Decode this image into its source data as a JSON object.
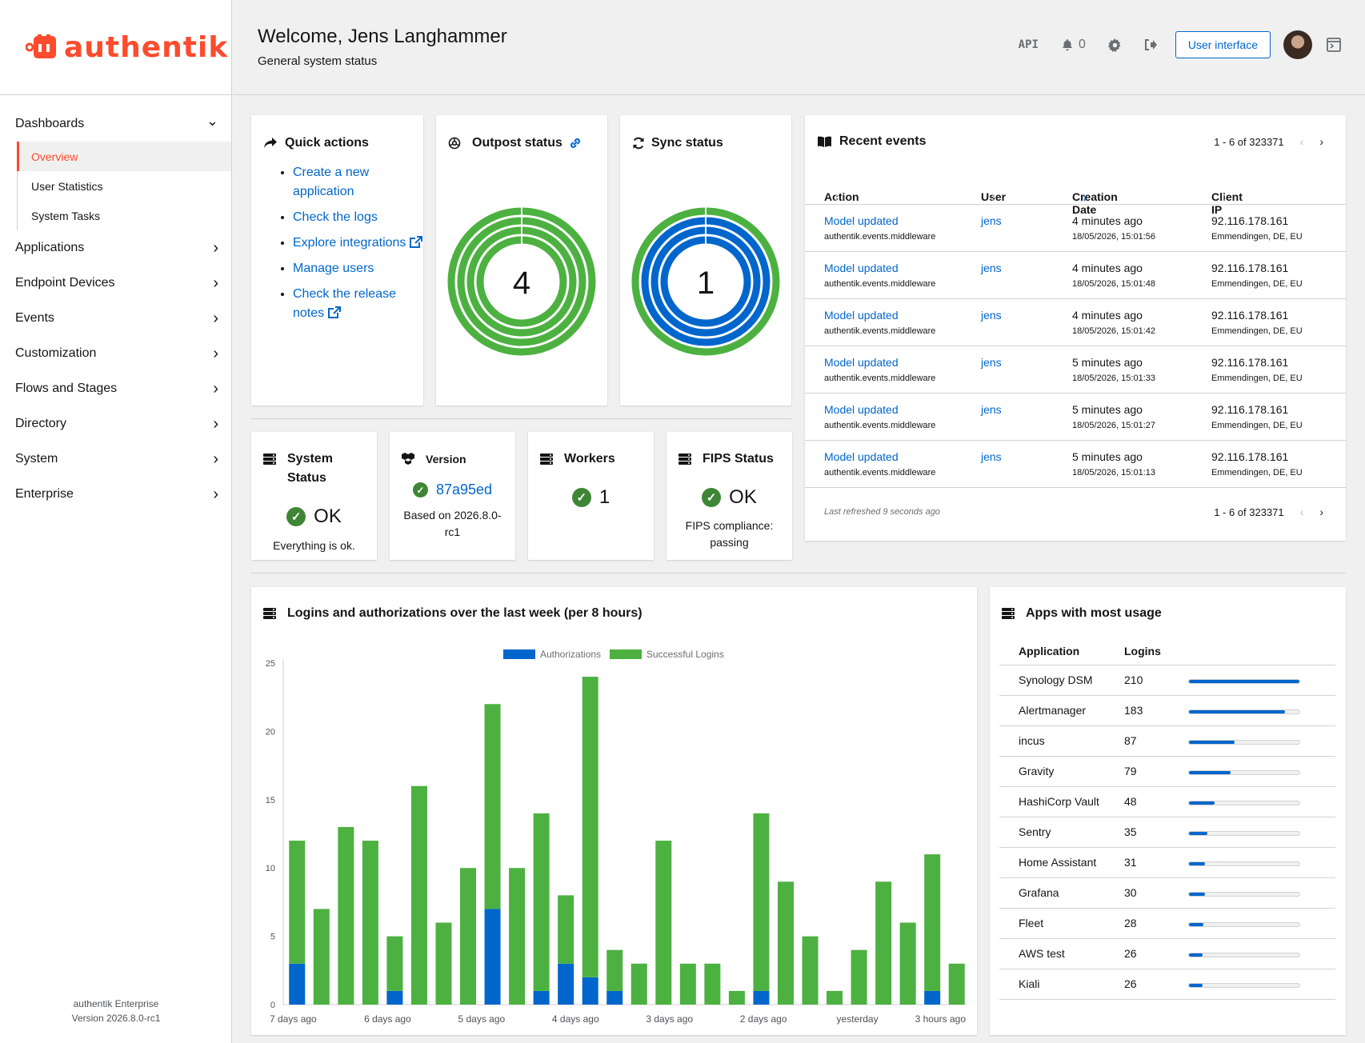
{
  "brand": {
    "name": "authentik",
    "color": "#fd4b2d"
  },
  "sidebar": {
    "items": [
      {
        "label": "Dashboards",
        "expanded": true,
        "children": [
          {
            "label": "Overview",
            "active": true
          },
          {
            "label": "User Statistics",
            "active": false
          },
          {
            "label": "System Tasks",
            "active": false
          }
        ]
      },
      {
        "label": "Applications"
      },
      {
        "label": "Endpoint Devices"
      },
      {
        "label": "Events"
      },
      {
        "label": "Customization"
      },
      {
        "label": "Flows and Stages"
      },
      {
        "label": "Directory"
      },
      {
        "label": "System"
      },
      {
        "label": "Enterprise"
      }
    ],
    "footer": {
      "edition": "authentik Enterprise",
      "version": "Version 2026.8.0-rc1"
    }
  },
  "header": {
    "title": "Welcome, Jens Langhammer",
    "subtitle": "General system status",
    "api_label": "API",
    "notifications_count": "0",
    "ui_button": "User interface"
  },
  "quick_actions": {
    "title": "Quick actions",
    "items": [
      {
        "label": "Create a new application",
        "external": false
      },
      {
        "label": "Check the logs",
        "external": false
      },
      {
        "label": "Explore integrations",
        "external": true
      },
      {
        "label": "Manage users",
        "external": false
      },
      {
        "label": "Check the release notes",
        "external": true
      }
    ]
  },
  "outpost_status": {
    "title": "Outpost status",
    "value": "4"
  },
  "sync_status": {
    "title": "Sync status",
    "value": "1"
  },
  "recent_events": {
    "title": "Recent events",
    "pagination": "1 - 6 of 323371",
    "columns": [
      "Action",
      "User",
      "Creation Date",
      "Client IP"
    ],
    "rows": [
      {
        "action": "Model updated",
        "app": "authentik.events.middleware",
        "user": "jens",
        "relative": "4 minutes ago",
        "date": "18/05/2026, 15:01:56",
        "ip": "92.116.178.161",
        "geo": "Emmendingen, DE, EU"
      },
      {
        "action": "Model updated",
        "app": "authentik.events.middleware",
        "user": "jens",
        "relative": "4 minutes ago",
        "date": "18/05/2026, 15:01:48",
        "ip": "92.116.178.161",
        "geo": "Emmendingen, DE, EU"
      },
      {
        "action": "Model updated",
        "app": "authentik.events.middleware",
        "user": "jens",
        "relative": "4 minutes ago",
        "date": "18/05/2026, 15:01:42",
        "ip": "92.116.178.161",
        "geo": "Emmendingen, DE, EU"
      },
      {
        "action": "Model updated",
        "app": "authentik.events.middleware",
        "user": "jens",
        "relative": "5 minutes ago",
        "date": "18/05/2026, 15:01:33",
        "ip": "92.116.178.161",
        "geo": "Emmendingen, DE, EU"
      },
      {
        "action": "Model updated",
        "app": "authentik.events.middleware",
        "user": "jens",
        "relative": "5 minutes ago",
        "date": "18/05/2026, 15:01:27",
        "ip": "92.116.178.161",
        "geo": "Emmendingen, DE, EU"
      },
      {
        "action": "Model updated",
        "app": "authentik.events.middleware",
        "user": "jens",
        "relative": "5 minutes ago",
        "date": "18/05/2026, 15:01:13",
        "ip": "92.116.178.161",
        "geo": "Emmendingen, DE, EU"
      }
    ],
    "last_refreshed": "Last refreshed 9 seconds ago"
  },
  "system_status": {
    "title": "System Status",
    "value": "OK",
    "desc": "Everything is ok."
  },
  "version": {
    "title": "Version",
    "value": "87a95ed",
    "desc": "Based on 2026.8.0-rc1"
  },
  "workers": {
    "title": "Workers",
    "value": "1"
  },
  "fips": {
    "title": "FIPS Status",
    "value": "OK",
    "desc": "FIPS compliance: passing"
  },
  "logins_chart": {
    "title": "Logins and authorizations over the last week (per 8 hours)"
  },
  "chart_data": {
    "type": "bar",
    "stacked": true,
    "title": "Logins and authorizations over the last week (per 8 hours)",
    "x_tick_labels": [
      "7 days ago",
      "6 days ago",
      "5 days ago",
      "4 days ago",
      "3 days ago",
      "2 days ago",
      "yesterday",
      "3 hours ago"
    ],
    "ylim": [
      0,
      25
    ],
    "y_ticks": [
      0,
      5,
      10,
      15,
      20,
      25
    ],
    "legend_position": "top",
    "series": [
      {
        "name": "Authorizations",
        "color": "#0066cc",
        "values": [
          3,
          0,
          0,
          0,
          1,
          0,
          0,
          0,
          7,
          0,
          1,
          3,
          2,
          1,
          0,
          0,
          0,
          0,
          0,
          1,
          0,
          0,
          0,
          0,
          0,
          0,
          1,
          0
        ]
      },
      {
        "name": "Successful Logins",
        "color": "#4cb140",
        "values": [
          9,
          7,
          13,
          12,
          4,
          16,
          6,
          10,
          15,
          10,
          13,
          5,
          22,
          3,
          3,
          12,
          3,
          3,
          1,
          13,
          9,
          5,
          1,
          4,
          9,
          6,
          10,
          3
        ]
      }
    ]
  },
  "apps_usage": {
    "title": "Apps with most usage",
    "columns": [
      "Application",
      "Logins"
    ],
    "rows": [
      {
        "name": "Synology DSM",
        "logins": "210",
        "fraction": 1.0
      },
      {
        "name": "Alertmanager",
        "logins": "183",
        "fraction": 0.871
      },
      {
        "name": "incus",
        "logins": "87",
        "fraction": 0.414
      },
      {
        "name": "Gravity",
        "logins": "79",
        "fraction": 0.376
      },
      {
        "name": "HashiCorp Vault",
        "logins": "48",
        "fraction": 0.229
      },
      {
        "name": "Sentry",
        "logins": "35",
        "fraction": 0.167
      },
      {
        "name": "Home Assistant",
        "logins": "31",
        "fraction": 0.148
      },
      {
        "name": "Grafana",
        "logins": "30",
        "fraction": 0.143
      },
      {
        "name": "Fleet",
        "logins": "28",
        "fraction": 0.133
      },
      {
        "name": "AWS test",
        "logins": "26",
        "fraction": 0.124
      },
      {
        "name": "Kiali",
        "logins": "26",
        "fraction": 0.124
      }
    ]
  },
  "colors": {
    "link": "#0066cc",
    "success": "#3e8635",
    "green": "#4cb140",
    "blue": "#0066cc"
  },
  "icons": [
    "share-icon",
    "outpost-icon",
    "sync-icon",
    "book-icon",
    "server-icon",
    "cubes-icon",
    "bell-icon",
    "gear-icon",
    "logout-icon",
    "drawer-icon",
    "external-link-icon",
    "link-icon",
    "chevron-icon"
  ]
}
